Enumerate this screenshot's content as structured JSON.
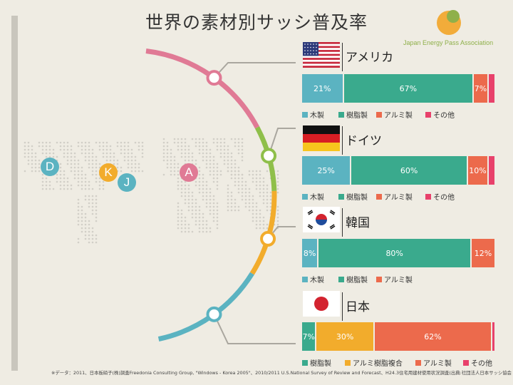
{
  "title": "世界の素材別サッシ普及率",
  "logo": {
    "text": "Japan Energy Pass Association"
  },
  "colors": {
    "wood": "#5bb3c1",
    "resin": "#3aaa8d",
    "alu": "#ec6a4c",
    "other": "#e8416b",
    "composite": "#f2ac2c"
  },
  "map_markers": [
    {
      "label": "D",
      "color": "#5bb3c1"
    },
    {
      "label": "K",
      "color": "#f2ac2c"
    },
    {
      "label": "J",
      "color": "#5bb3c1"
    },
    {
      "label": "A",
      "color": "#e07a95"
    }
  ],
  "footnote": "※データ：2011、日本板硝子(株)調査Freedonia Consulting Group, \"Windows - Korea 2005\"、2010/2011 U.S.National Survey of Review and Forecast、H24.3住宅用建材使用状況調査(出典:社団法人日本サッシ協会",
  "chart_data": {
    "type": "bar",
    "title": "世界の素材別サッシ普及率",
    "orientation": "horizontal-stacked-100",
    "charts": [
      {
        "country": "アメリカ",
        "segments": [
          {
            "name": "木製",
            "value": 21,
            "label": "21%",
            "color": "#5bb3c1"
          },
          {
            "name": "樹脂製",
            "value": 67,
            "label": "67%",
            "color": "#3aaa8d"
          },
          {
            "name": "アルミ製",
            "value": 7,
            "label": "7%",
            "color": "#ec6a4c"
          },
          {
            "name": "その他",
            "value": 3,
            "label": "",
            "color": "#e8416b"
          }
        ],
        "legend": [
          "木製",
          "樹脂製",
          "アルミ製",
          "その他"
        ]
      },
      {
        "country": "ドイツ",
        "segments": [
          {
            "name": "木製",
            "value": 25,
            "label": "25%",
            "color": "#5bb3c1"
          },
          {
            "name": "樹脂製",
            "value": 60,
            "label": "60%",
            "color": "#3aaa8d"
          },
          {
            "name": "アルミ製",
            "value": 10,
            "label": "10%",
            "color": "#ec6a4c"
          },
          {
            "name": "その他",
            "value": 3,
            "label": "",
            "color": "#e8416b"
          }
        ],
        "legend": [
          "木製",
          "樹脂製",
          "アルミ製",
          "その他"
        ]
      },
      {
        "country": "韓国",
        "segments": [
          {
            "name": "木製",
            "value": 8,
            "label": "8%",
            "color": "#5bb3c1"
          },
          {
            "name": "樹脂製",
            "value": 80,
            "label": "80%",
            "color": "#3aaa8d"
          },
          {
            "name": "アルミ製",
            "value": 12,
            "label": "12%",
            "color": "#ec6a4c"
          }
        ],
        "legend": [
          "木製",
          "樹脂製",
          "アルミ製"
        ]
      },
      {
        "country": "日本",
        "segments": [
          {
            "name": "樹脂製",
            "value": 7,
            "label": "7%",
            "color": "#3aaa8d"
          },
          {
            "name": "アルミ樹脂複合",
            "value": 30,
            "label": "30%",
            "color": "#f2ac2c"
          },
          {
            "name": "アルミ製",
            "value": 62,
            "label": "62%",
            "color": "#ec6a4c"
          },
          {
            "name": "その他",
            "value": 1,
            "label": "",
            "color": "#e8416b"
          }
        ],
        "legend": [
          "樹脂製",
          "アルミ樹脂複合",
          "アルミ製",
          "その他"
        ]
      }
    ]
  }
}
